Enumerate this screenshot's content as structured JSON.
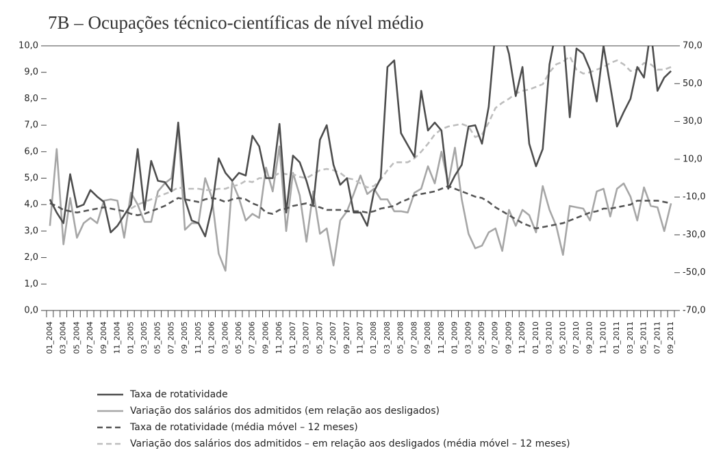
{
  "chart_data": {
    "type": "line",
    "title": "7B – Ocupações técnico-científicas de nível médio",
    "categories": [
      "01_2004",
      null,
      "03_2004",
      null,
      "05_2004",
      null,
      "07_2004",
      null,
      "09_2004",
      null,
      "11_2004",
      null,
      "01_2005",
      null,
      "03_2005",
      null,
      "05_2005",
      null,
      "07_2005",
      null,
      "09_2005",
      null,
      "11_2005",
      null,
      "01_2006",
      null,
      "03_2006",
      null,
      "05_2006",
      null,
      "07_2006",
      null,
      "09_2006",
      null,
      "11_2006",
      null,
      "01_2007",
      null,
      "03_2007",
      null,
      "05_2007",
      null,
      "07_2007",
      null,
      "09_2007",
      null,
      "11_2007",
      null,
      "01_2008",
      null,
      "03_2008",
      null,
      "05_2008",
      null,
      "07_2008",
      null,
      "09_2008",
      null,
      "11_2008",
      null,
      "01_2009",
      null,
      "03_2009",
      null,
      "05_2009",
      null,
      "07_2009",
      null,
      "09_2009",
      null,
      "11_2009",
      null,
      "01_2010",
      null,
      "03_2010",
      null,
      "05_2010",
      null,
      "07_2010",
      null,
      "09_2010",
      null,
      "11_2010",
      null,
      "01_2011",
      null,
      "03_2011",
      null,
      "05_2011",
      null,
      "07_2011",
      null,
      "09_2011"
    ],
    "ylim": [
      0,
      10
    ],
    "yticks": [
      {
        "value": 0,
        "label": "0,0"
      },
      {
        "value": 1,
        "label": "1,0"
      },
      {
        "value": 2,
        "label": "2,0"
      },
      {
        "value": 3,
        "label": "3,0"
      },
      {
        "value": 4,
        "label": "4,0"
      },
      {
        "value": 5,
        "label": "5,0"
      },
      {
        "value": 6,
        "label": "6,0"
      },
      {
        "value": 7,
        "label": "7,0"
      },
      {
        "value": 8,
        "label": "8,0"
      },
      {
        "value": 9,
        "label": "9,0"
      },
      {
        "value": 10,
        "label": "10,0"
      }
    ],
    "y2lim": [
      -70,
      70
    ],
    "y2ticks": [
      {
        "value": -70,
        "label": "-70,0"
      },
      {
        "value": -50,
        "label": "-50,0"
      },
      {
        "value": -30,
        "label": "-30,0"
      },
      {
        "value": -10,
        "label": "-10,0"
      },
      {
        "value": 10,
        "label": "10,0"
      },
      {
        "value": 30,
        "label": "30,0"
      },
      {
        "value": 50,
        "label": "50,0"
      },
      {
        "value": 70,
        "label": "70,0"
      }
    ],
    "grid": false,
    "series": [
      {
        "name": "Taxa de rotatividade",
        "color": "#4d4d4d",
        "dash": false,
        "values": [
          4.2,
          3.7,
          3.3,
          5.15,
          3.9,
          4.0,
          4.55,
          4.3,
          4.1,
          2.95,
          3.2,
          3.6,
          4.0,
          6.1,
          3.8,
          5.65,
          4.9,
          4.85,
          4.5,
          7.1,
          4.2,
          3.4,
          3.3,
          2.8,
          3.9,
          5.75,
          5.2,
          4.9,
          5.2,
          5.1,
          6.6,
          6.2,
          5.0,
          5.0,
          7.05,
          3.7,
          5.85,
          5.6,
          4.9,
          4.0,
          6.45,
          7.0,
          5.5,
          4.75,
          5.0,
          3.7,
          3.7,
          3.2,
          4.5,
          5.0,
          9.2,
          9.45,
          6.7,
          6.25,
          5.8,
          8.3,
          6.8,
          7.1,
          6.8,
          4.6,
          5.1,
          5.5,
          6.95,
          7.0,
          6.3,
          7.7,
          10.6,
          10.6,
          9.7,
          8.1,
          9.2,
          6.3,
          5.45,
          6.1,
          9.3,
          10.6,
          10.6,
          7.3,
          9.9,
          9.7,
          9.1,
          7.9,
          10.0,
          8.5,
          6.95,
          7.5,
          8.0,
          9.2,
          8.8,
          10.6,
          8.3,
          8.8,
          9.05
        ]
      },
      {
        "name": "Variação dos salários dos admitidos (em relação aos desligados)",
        "color": "#a6a6a6",
        "dash": false,
        "axis": "y2",
        "values": [
          -25.2,
          15.4,
          -35,
          -10.5,
          -31.5,
          -23.8,
          -21,
          -23.8,
          -11.9,
          -11.2,
          -11.9,
          -31.5,
          -7.7,
          -14,
          -23.1,
          -23.1,
          -7,
          -2.8,
          0,
          27.3,
          -27.3,
          -23.8,
          -23.8,
          0,
          -10.5,
          -39.9,
          -49,
          -2.1,
          -10.5,
          -22.4,
          -18.9,
          -21,
          5.6,
          -7,
          16.8,
          -28,
          2.8,
          -9.1,
          -33.6,
          -7,
          -29.4,
          -26.6,
          -46.2,
          -22.4,
          -17.5,
          -8.4,
          1.4,
          -8.4,
          -5.6,
          -11.2,
          -11.2,
          -17.5,
          -17.5,
          -18.2,
          -7.7,
          -5.6,
          6.3,
          -2.8,
          14,
          -2.8,
          16.1,
          -11.2,
          -29.4,
          -37.1,
          -35.7,
          -28.7,
          -26.6,
          -38.5,
          -16.8,
          -25.2,
          -16.8,
          -19.6,
          -28.7,
          -4.2,
          -16.8,
          -25.2,
          -40.6,
          -14.7,
          -15.4,
          -16.1,
          -22.4,
          -7,
          -5.6,
          -20.3,
          -5.6,
          -2.8,
          -9.8,
          -22.4,
          -4.9,
          -14.7,
          -15.4,
          -28,
          -13.3
        ]
      },
      {
        "name": "Taxa de rotatividade (média móvel – 12 meses)",
        "color": "#555555",
        "dash": true,
        "values": [
          4.05,
          3.95,
          3.8,
          3.75,
          3.7,
          3.75,
          3.8,
          3.85,
          3.9,
          3.85,
          3.8,
          3.75,
          3.65,
          3.6,
          3.65,
          3.75,
          3.85,
          3.95,
          4.1,
          4.25,
          4.2,
          4.15,
          4.1,
          4.2,
          4.25,
          4.2,
          4.1,
          4.2,
          4.25,
          4.2,
          4.05,
          3.95,
          3.7,
          3.65,
          3.8,
          3.85,
          3.95,
          4.0,
          4.05,
          3.95,
          3.9,
          3.8,
          3.8,
          3.8,
          3.75,
          3.75,
          3.75,
          3.7,
          3.75,
          3.85,
          3.9,
          3.95,
          4.1,
          4.2,
          4.35,
          4.4,
          4.45,
          4.5,
          4.6,
          4.7,
          4.6,
          4.5,
          4.4,
          4.3,
          4.25,
          4.1,
          3.9,
          3.75,
          3.6,
          3.45,
          3.3,
          3.2,
          3.1,
          3.15,
          3.2,
          3.25,
          3.3,
          3.4,
          3.5,
          3.6,
          3.7,
          3.75,
          3.85,
          3.85,
          3.9,
          3.95,
          4.0,
          4.15,
          4.15,
          4.15,
          4.15,
          4.1,
          4.05
        ]
      },
      {
        "name": "Variação dos salários dos admitidos – em relação aos desligados (média móvel – 12 meses)",
        "color": "#bdbdbd",
        "dash": true,
        "axis": "y2",
        "values": [
          null,
          null,
          null,
          null,
          null,
          null,
          null,
          null,
          null,
          null,
          null,
          null,
          -16.1,
          -14,
          -12.6,
          -11.2,
          -9.8,
          -8.4,
          -7,
          -4.9,
          -5.6,
          -5.6,
          -5.6,
          -6.3,
          -6.3,
          -5.6,
          -5.6,
          -4.2,
          -3.5,
          -1.4,
          -2.1,
          0,
          0,
          0.7,
          2.8,
          2.1,
          2.1,
          0.7,
          0,
          2.1,
          4.2,
          4.9,
          4.2,
          2.8,
          0,
          -0.7,
          -2.8,
          -4.9,
          -4.2,
          -0.7,
          4.2,
          8.4,
          8.4,
          8.4,
          10.5,
          14,
          18.2,
          23.1,
          25.9,
          27.3,
          28,
          28.7,
          27.3,
          21.7,
          23.1,
          29.4,
          37.1,
          39.9,
          42,
          44.8,
          46.2,
          46.9,
          48.3,
          49.7,
          56,
          60.2,
          61.6,
          64.4,
          57.4,
          55.3,
          56,
          57.4,
          58.8,
          60.9,
          62.3,
          60.2,
          56.7,
          57.4,
          60.9,
          60.2,
          57.4,
          57.4,
          58.8
        ]
      }
    ]
  }
}
